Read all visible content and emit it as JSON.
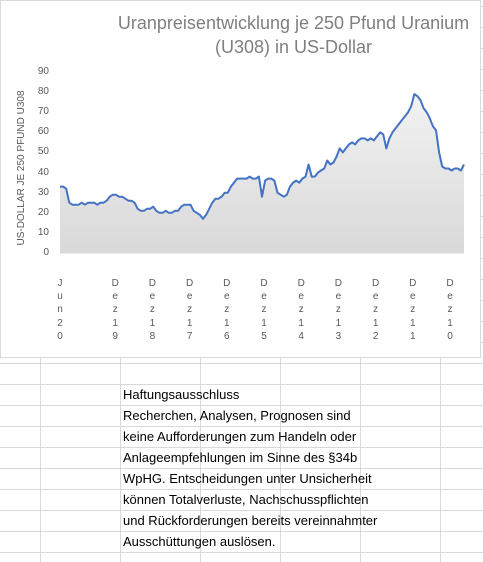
{
  "chart_data": {
    "type": "area",
    "title_line1": "Uranpreisentwicklung je 250 Pfund Uranium",
    "title_line2": "(U308) in US-Dollar",
    "ylabel": "US-DOLLAR JE 250 PFUND U308",
    "ylim": [
      0,
      90
    ],
    "yticks": [
      "0",
      "10",
      "20",
      "30",
      "40",
      "50",
      "60",
      "70",
      "80",
      "90"
    ],
    "x_tick_labels": [
      "Jun20",
      "Dez19",
      "Dez18",
      "Dez17",
      "Dez16",
      "Dez15",
      "Dez14",
      "Dez13",
      "Dez12",
      "Dez11",
      "Dez10"
    ],
    "grid": false,
    "colors": {
      "line": "#4472c4",
      "area": "#d9d9d9"
    },
    "series": [
      {
        "values": [
          33,
          33,
          32,
          25,
          24,
          24,
          24,
          25,
          24,
          25,
          25,
          25,
          24,
          25,
          25,
          26,
          28,
          29,
          29,
          28,
          28,
          27,
          26,
          26,
          25,
          22,
          21,
          21,
          22,
          22,
          23,
          21,
          20,
          20,
          21,
          20,
          20,
          21,
          21,
          23,
          24,
          24,
          24,
          21,
          20,
          19,
          17,
          19,
          22,
          25,
          27,
          27,
          28,
          30,
          30,
          33,
          35,
          37,
          37,
          37,
          37,
          38,
          37,
          37,
          38,
          28,
          36,
          37,
          37,
          36,
          30,
          29,
          28,
          29,
          33,
          35,
          36,
          35,
          37,
          38,
          44,
          38,
          38,
          40,
          41,
          42,
          46,
          44,
          45,
          48,
          52,
          50,
          52,
          54,
          55,
          54,
          56,
          57,
          57,
          56,
          57,
          56,
          58,
          60,
          59,
          52,
          57,
          60,
          62,
          64,
          66,
          68,
          70,
          73,
          79,
          78,
          76,
          72,
          70,
          67,
          63,
          61,
          50,
          43,
          42,
          42,
          41,
          42,
          42,
          41,
          44
        ]
      }
    ]
  },
  "disclaimer": {
    "heading": "Haftungsausschluss",
    "lines": [
      "Recherchen, Analysen, Prognosen sind",
      "keine Aufforderungen zum Handeln oder",
      "Anlageempfehlungen im Sinne des §34b",
      "WpHG. Entscheidungen unter Unsicherheit",
      "können Totalverluste, Nachschusspflichten",
      "und Rückforderungen bereits vereinnahmter",
      "Ausschüttungen auslösen."
    ]
  }
}
